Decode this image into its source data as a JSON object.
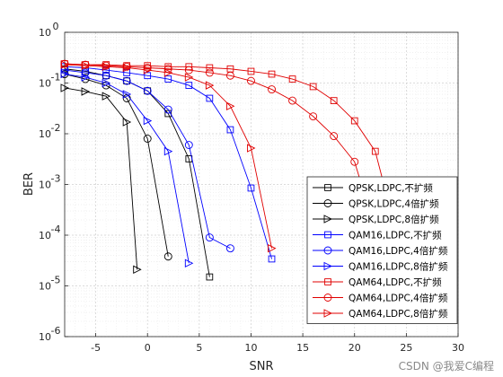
{
  "chart_data": {
    "type": "line",
    "xlabel": "SNR",
    "ylabel": "BER",
    "xlim": [
      -8,
      30
    ],
    "ylim_log10": [
      -6,
      0
    ],
    "yscale": "log",
    "grid": true,
    "minor_grid": true,
    "legend_placement": "lower-right",
    "x_ticks": [
      -5,
      0,
      5,
      10,
      15,
      20,
      25,
      30
    ],
    "y_tick_exponents": [
      -6,
      -5,
      -4,
      -3,
      -2,
      -1,
      0
    ],
    "y_tick_base": "10",
    "series": [
      {
        "name": "QPSK,LDPC,不扩频",
        "color": "#000000",
        "marker": "square",
        "x": [
          -8,
          -6,
          -4,
          -2,
          0,
          2,
          4,
          6
        ],
        "y": [
          0.19,
          0.17,
          0.14,
          0.11,
          0.07,
          0.025,
          0.0032,
          1.5e-05
        ]
      },
      {
        "name": "QPSK,LDPC,4倍扩频",
        "color": "#000000",
        "marker": "circle",
        "x": [
          -8,
          -6,
          -4,
          -2,
          0,
          2
        ],
        "y": [
          0.15,
          0.12,
          0.09,
          0.05,
          0.008,
          3.8e-05
        ]
      },
      {
        "name": "QPSK,LDPC,8倍扩频",
        "color": "#000000",
        "marker": "triangle-right",
        "x": [
          -8,
          -6,
          -4,
          -2,
          -1
        ],
        "y": [
          0.08,
          0.068,
          0.055,
          0.017,
          2.1e-05
        ]
      },
      {
        "name": "QAM16,LDPC,不扩频",
        "color": "#0000ff",
        "marker": "square",
        "x": [
          -8,
          -6,
          -4,
          -2,
          0,
          2,
          4,
          6,
          8,
          10,
          12
        ],
        "y": [
          0.21,
          0.2,
          0.18,
          0.16,
          0.14,
          0.12,
          0.09,
          0.05,
          0.012,
          0.00085,
          3.4e-05
        ]
      },
      {
        "name": "QAM16,LDPC,4倍扩频",
        "color": "#0000ff",
        "marker": "circle",
        "x": [
          -8,
          -6,
          -4,
          -2,
          0,
          2,
          4,
          6,
          8
        ],
        "y": [
          0.18,
          0.16,
          0.14,
          0.11,
          0.07,
          0.03,
          0.006,
          9e-05,
          5.5e-05
        ]
      },
      {
        "name": "QAM16,LDPC,8倍扩频",
        "color": "#0000ff",
        "marker": "triangle-right",
        "x": [
          -8,
          -6,
          -4,
          -2,
          0,
          2,
          4
        ],
        "y": [
          0.15,
          0.13,
          0.1,
          0.06,
          0.018,
          0.0045,
          2.8e-05
        ]
      },
      {
        "name": "QAM64,LDPC,不扩频",
        "color": "#e00000",
        "marker": "square",
        "x": [
          -8,
          -6,
          -4,
          -2,
          0,
          2,
          4,
          6,
          8,
          10,
          12,
          14,
          16,
          18,
          20,
          22,
          24
        ],
        "y": [
          0.24,
          0.23,
          0.23,
          0.22,
          0.22,
          0.21,
          0.21,
          0.2,
          0.19,
          0.17,
          0.15,
          0.12,
          0.085,
          0.045,
          0.018,
          0.0045,
          0.00012
        ]
      },
      {
        "name": "QAM64,LDPC,4倍扩频",
        "color": "#e00000",
        "marker": "circle",
        "x": [
          -8,
          -6,
          -4,
          -2,
          0,
          2,
          4,
          6,
          8,
          10,
          12,
          14,
          16,
          18,
          20,
          22
        ],
        "y": [
          0.24,
          0.23,
          0.22,
          0.21,
          0.2,
          0.19,
          0.18,
          0.16,
          0.14,
          0.11,
          0.075,
          0.045,
          0.022,
          0.009,
          0.0028,
          0.00013
        ]
      },
      {
        "name": "QAM64,LDPC,8倍扩频",
        "color": "#e00000",
        "marker": "triangle-right",
        "x": [
          -8,
          -6,
          -4,
          -2,
          0,
          2,
          4,
          6,
          8,
          10,
          12
        ],
        "y": [
          0.23,
          0.22,
          0.21,
          0.2,
          0.18,
          0.16,
          0.13,
          0.09,
          0.035,
          0.0052,
          5.5e-05
        ]
      }
    ]
  },
  "watermark": "CSDN @我爱C编程"
}
